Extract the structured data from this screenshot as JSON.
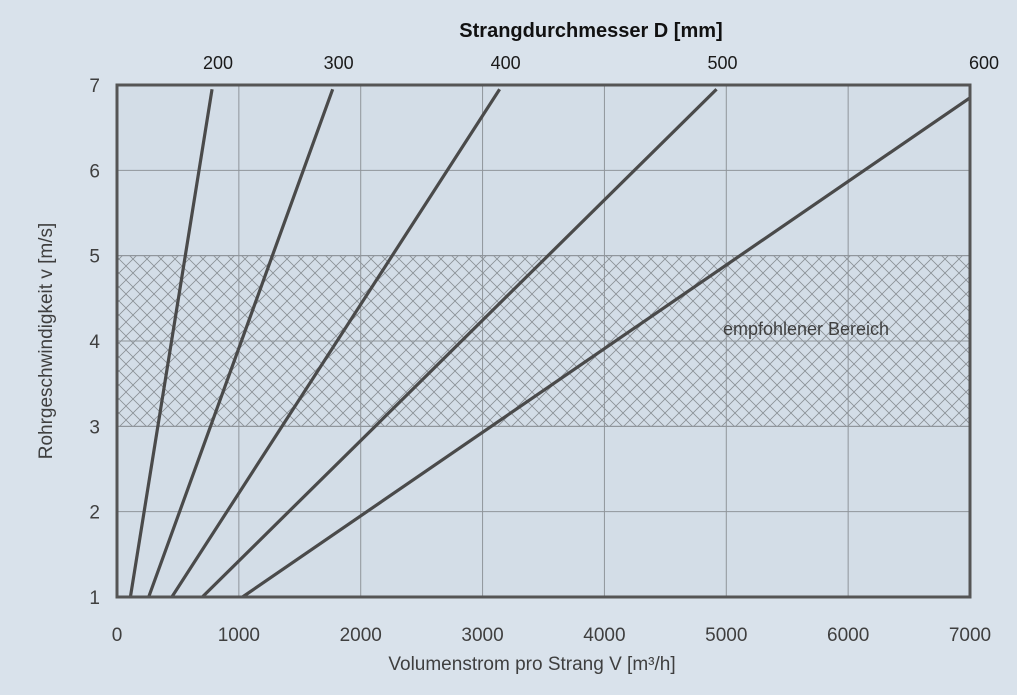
{
  "chart_data": {
    "type": "line",
    "title": "Strangdurchmesser D [mm]",
    "xlabel": "Volumenstrom pro Strang V [m³/h]",
    "ylabel": "Rohrgeschwindigkeit v [m/s]",
    "xlim": [
      0,
      7000
    ],
    "ylim": [
      1,
      7
    ],
    "x_ticks": [
      "0",
      "1000",
      "2000",
      "3000",
      "4000",
      "5000",
      "6000",
      "7000"
    ],
    "y_ticks": [
      "1",
      "2",
      "3",
      "4",
      "5",
      "6",
      "7"
    ],
    "grid": true,
    "recommended_band": {
      "label": "empfohlener Bereich",
      "y_from": 3,
      "y_to": 5
    },
    "series": [
      {
        "name": "200",
        "points": [
          [
            110,
            1.0
          ],
          [
            780,
            6.95
          ]
        ]
      },
      {
        "name": "300",
        "points": [
          [
            260,
            1.0
          ],
          [
            1770,
            6.95
          ]
        ]
      },
      {
        "name": "400",
        "points": [
          [
            450,
            1.0
          ],
          [
            3140,
            6.95
          ]
        ]
      },
      {
        "name": "500",
        "points": [
          [
            700,
            1.0
          ],
          [
            4920,
            6.95
          ]
        ]
      },
      {
        "name": "600",
        "points": [
          [
            1030,
            1.0
          ],
          [
            7000,
            6.85
          ]
        ]
      }
    ]
  },
  "colors": {
    "background": "#d9e2eb",
    "plot_background": "#d3dde7",
    "line": "#4a4a4a",
    "grid": "#8f959a",
    "hatch": "#8a9096",
    "text": "#3f3f3f"
  }
}
